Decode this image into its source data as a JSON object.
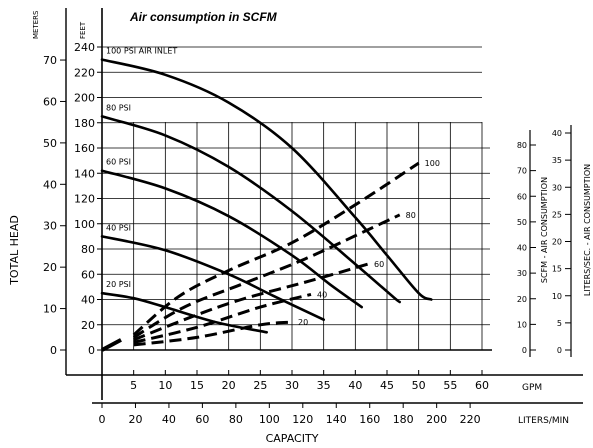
{
  "chart_data": {
    "type": "line",
    "title": "Air consumption in SCFM",
    "xlabel": "CAPACITY",
    "ylabel": "TOTAL HEAD",
    "x_units_gpm": "GPM",
    "x_units_lpm": "LITERS/MIN",
    "y_units_feet": "FEET",
    "y_units_meters": "METERS",
    "right_axis_scfm_label": "SCFM - AIR CONSUMPTION",
    "right_axis_lsec_label": "LITERS/SEC. - AIR CONSUMPTION",
    "xlim_gpm": [
      0,
      60
    ],
    "ylim_feet": [
      0,
      240
    ],
    "gpm_ticks": [
      "5",
      "10",
      "15",
      "20",
      "25",
      "30",
      "35",
      "40",
      "45",
      "50",
      "55",
      "60"
    ],
    "lpm_ticks": [
      "0",
      "20",
      "40",
      "60",
      "80",
      "100",
      "120",
      "140",
      "160",
      "180",
      "200",
      "220"
    ],
    "feet_ticks": [
      "0",
      "20",
      "40",
      "60",
      "80",
      "100",
      "120",
      "140",
      "160",
      "180",
      "200",
      "220",
      "240"
    ],
    "meters_ticks": [
      "0",
      "10",
      "20",
      "30",
      "40",
      "50",
      "60",
      "70"
    ],
    "scfm_ticks": [
      "0",
      "10",
      "20",
      "30",
      "40",
      "50",
      "60",
      "70",
      "80"
    ],
    "lsec_ticks": [
      "0",
      "5",
      "10",
      "15",
      "20",
      "25",
      "30",
      "35",
      "40"
    ],
    "grid": true,
    "inlet_pressure_curves": [
      {
        "name": "100 PSI AIR INLET",
        "points": [
          [
            0,
            230
          ],
          [
            10,
            218
          ],
          [
            20,
            196
          ],
          [
            30,
            160
          ],
          [
            40,
            105
          ],
          [
            45,
            75
          ],
          [
            50,
            45
          ],
          [
            52,
            40
          ]
        ]
      },
      {
        "name": "80 PSI",
        "points": [
          [
            0,
            185
          ],
          [
            10,
            170
          ],
          [
            20,
            145
          ],
          [
            30,
            110
          ],
          [
            40,
            68
          ],
          [
            46,
            42
          ],
          [
            47,
            38
          ]
        ]
      },
      {
        "name": "60 PSI",
        "points": [
          [
            0,
            142
          ],
          [
            10,
            128
          ],
          [
            20,
            106
          ],
          [
            30,
            75
          ],
          [
            36,
            52
          ],
          [
            41,
            34
          ]
        ]
      },
      {
        "name": "40 PSI",
        "points": [
          [
            0,
            90
          ],
          [
            10,
            79
          ],
          [
            20,
            60
          ],
          [
            27,
            43
          ],
          [
            35,
            24
          ]
        ]
      },
      {
        "name": "20 PSI",
        "points": [
          [
            0,
            45
          ],
          [
            5,
            41
          ],
          [
            10,
            34
          ],
          [
            18,
            22
          ],
          [
            26,
            14
          ]
        ]
      }
    ],
    "air_consumption_lines": [
      {
        "name": "100",
        "points": [
          [
            5,
            12
          ],
          [
            12,
            42
          ],
          [
            20,
            63
          ],
          [
            30,
            85
          ],
          [
            40,
            115
          ],
          [
            50,
            148
          ]
        ]
      },
      {
        "name": "80",
        "points": [
          [
            5,
            10
          ],
          [
            13,
            34
          ],
          [
            22,
            52
          ],
          [
            32,
            72
          ],
          [
            44,
            100
          ],
          [
            47,
            107
          ]
        ]
      },
      {
        "name": "60",
        "points": [
          [
            5,
            8
          ],
          [
            14,
            26
          ],
          [
            22,
            40
          ],
          [
            33,
            55
          ],
          [
            42,
            68
          ]
        ]
      },
      {
        "name": "40",
        "points": [
          [
            5,
            6
          ],
          [
            15,
            18
          ],
          [
            25,
            34
          ],
          [
            33,
            44
          ]
        ]
      },
      {
        "name": "20",
        "points": [
          [
            5,
            4
          ],
          [
            15,
            10
          ],
          [
            25,
            20
          ],
          [
            30,
            22
          ]
        ]
      }
    ]
  }
}
